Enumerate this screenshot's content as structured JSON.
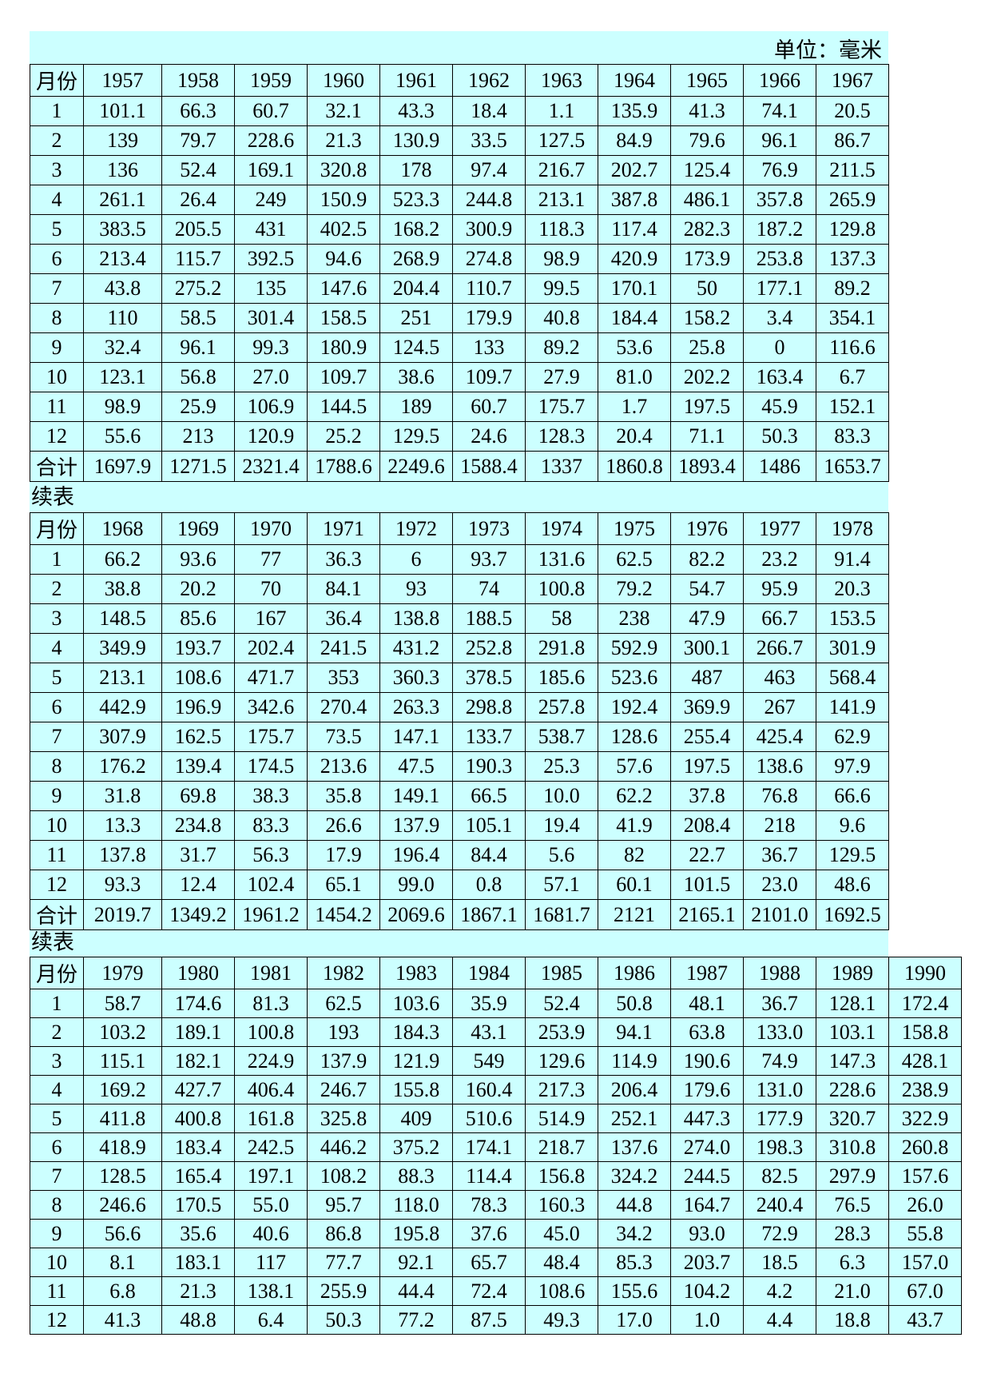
{
  "unit_label": "单位：毫米",
  "continuation_label": "续表",
  "month_header": "月份",
  "total_label": "合计",
  "colors": {
    "cell_background": "#CCFFFF",
    "border": "#000000"
  },
  "tables": [
    {
      "years": [
        "1957",
        "1958",
        "1959",
        "1960",
        "1961",
        "1962",
        "1963",
        "1964",
        "1965",
        "1966",
        "1967"
      ],
      "rows": [
        {
          "month": "1",
          "values": [
            "101.1",
            "66.3",
            "60.7",
            "32.1",
            "43.3",
            "18.4",
            "1.1",
            "135.9",
            "41.3",
            "74.1",
            "20.5"
          ]
        },
        {
          "month": "2",
          "values": [
            "139",
            "79.7",
            "228.6",
            "21.3",
            "130.9",
            "33.5",
            "127.5",
            "84.9",
            "79.6",
            "96.1",
            "86.7"
          ]
        },
        {
          "month": "3",
          "values": [
            "136",
            "52.4",
            "169.1",
            "320.8",
            "178",
            "97.4",
            "216.7",
            "202.7",
            "125.4",
            "76.9",
            "211.5"
          ]
        },
        {
          "month": "4",
          "values": [
            "261.1",
            "26.4",
            "249",
            "150.9",
            "523.3",
            "244.8",
            "213.1",
            "387.8",
            "486.1",
            "357.8",
            "265.9"
          ]
        },
        {
          "month": "5",
          "values": [
            "383.5",
            "205.5",
            "431",
            "402.5",
            "168.2",
            "300.9",
            "118.3",
            "117.4",
            "282.3",
            "187.2",
            "129.8"
          ]
        },
        {
          "month": "6",
          "values": [
            "213.4",
            "115.7",
            "392.5",
            "94.6",
            "268.9",
            "274.8",
            "98.9",
            "420.9",
            "173.9",
            "253.8",
            "137.3"
          ]
        },
        {
          "month": "7",
          "values": [
            "43.8",
            "275.2",
            "135",
            "147.6",
            "204.4",
            "110.7",
            "99.5",
            "170.1",
            "50",
            "177.1",
            "89.2"
          ]
        },
        {
          "month": "8",
          "values": [
            "110",
            "58.5",
            "301.4",
            "158.5",
            "251",
            "179.9",
            "40.8",
            "184.4",
            "158.2",
            "3.4",
            "354.1"
          ]
        },
        {
          "month": "9",
          "values": [
            "32.4",
            "96.1",
            "99.3",
            "180.9",
            "124.5",
            "133",
            "89.2",
            "53.6",
            "25.8",
            "0",
            "116.6"
          ]
        },
        {
          "month": "10",
          "values": [
            "123.1",
            "56.8",
            "27.0",
            "109.7",
            "38.6",
            "109.7",
            "27.9",
            "81.0",
            "202.2",
            "163.4",
            "6.7"
          ]
        },
        {
          "month": "11",
          "values": [
            "98.9",
            "25.9",
            "106.9",
            "144.5",
            "189",
            "60.7",
            "175.7",
            "1.7",
            "197.5",
            "45.9",
            "152.1"
          ]
        },
        {
          "month": "12",
          "values": [
            "55.6",
            "213",
            "120.9",
            "25.2",
            "129.5",
            "24.6",
            "128.3",
            "20.4",
            "71.1",
            "50.3",
            "83.3"
          ]
        }
      ],
      "totals": [
        "1697.9",
        "1271.5",
        "2321.4",
        "1788.6",
        "2249.6",
        "1588.4",
        "1337",
        "1860.8",
        "1893.4",
        "1486",
        "1653.7"
      ]
    },
    {
      "years": [
        "1968",
        "1969",
        "1970",
        "1971",
        "1972",
        "1973",
        "1974",
        "1975",
        "1976",
        "1977",
        "1978"
      ],
      "rows": [
        {
          "month": "1",
          "values": [
            "66.2",
            "93.6",
            "77",
            "36.3",
            "6",
            "93.7",
            "131.6",
            "62.5",
            "82.2",
            "23.2",
            "91.4"
          ]
        },
        {
          "month": "2",
          "values": [
            "38.8",
            "20.2",
            "70",
            "84.1",
            "93",
            "74",
            "100.8",
            "79.2",
            "54.7",
            "95.9",
            "20.3"
          ]
        },
        {
          "month": "3",
          "values": [
            "148.5",
            "85.6",
            "167",
            "36.4",
            "138.8",
            "188.5",
            "58",
            "238",
            "47.9",
            "66.7",
            "153.5"
          ]
        },
        {
          "month": "4",
          "values": [
            "349.9",
            "193.7",
            "202.4",
            "241.5",
            "431.2",
            "252.8",
            "291.8",
            "592.9",
            "300.1",
            "266.7",
            "301.9"
          ]
        },
        {
          "month": "5",
          "values": [
            "213.1",
            "108.6",
            "471.7",
            "353",
            "360.3",
            "378.5",
            "185.6",
            "523.6",
            "487",
            "463",
            "568.4"
          ]
        },
        {
          "month": "6",
          "values": [
            "442.9",
            "196.9",
            "342.6",
            "270.4",
            "263.3",
            "298.8",
            "257.8",
            "192.4",
            "369.9",
            "267",
            "141.9"
          ]
        },
        {
          "month": "7",
          "values": [
            "307.9",
            "162.5",
            "175.7",
            "73.5",
            "147.1",
            "133.7",
            "538.7",
            "128.6",
            "255.4",
            "425.4",
            "62.9"
          ]
        },
        {
          "month": "8",
          "values": [
            "176.2",
            "139.4",
            "174.5",
            "213.6",
            "47.5",
            "190.3",
            "25.3",
            "57.6",
            "197.5",
            "138.6",
            "97.9"
          ]
        },
        {
          "month": "9",
          "values": [
            "31.8",
            "69.8",
            "38.3",
            "35.8",
            "149.1",
            "66.5",
            "10.0",
            "62.2",
            "37.8",
            "76.8",
            "66.6"
          ]
        },
        {
          "month": "10",
          "values": [
            "13.3",
            "234.8",
            "83.3",
            "26.6",
            "137.9",
            "105.1",
            "19.4",
            "41.9",
            "208.4",
            "218",
            "9.6"
          ]
        },
        {
          "month": "11",
          "values": [
            "137.8",
            "31.7",
            "56.3",
            "17.9",
            "196.4",
            "84.4",
            "5.6",
            "82",
            "22.7",
            "36.7",
            "129.5"
          ]
        },
        {
          "month": "12",
          "values": [
            "93.3",
            "12.4",
            "102.4",
            "65.1",
            "99.0",
            "0.8",
            "57.1",
            "60.1",
            "101.5",
            "23.0",
            "48.6"
          ]
        }
      ],
      "totals": [
        "2019.7",
        "1349.2",
        "1961.2",
        "1454.2",
        "2069.6",
        "1867.1",
        "1681.7",
        "2121",
        "2165.1",
        "2101.0",
        "1692.5"
      ]
    },
    {
      "years": [
        "1979",
        "1980",
        "1981",
        "1982",
        "1983",
        "1984",
        "1985",
        "1986",
        "1987",
        "1988",
        "1989",
        "1990"
      ],
      "rows": [
        {
          "month": "1",
          "values": [
            "58.7",
            "174.6",
            "81.3",
            "62.5",
            "103.6",
            "35.9",
            "52.4",
            "50.8",
            "48.1",
            "36.7",
            "128.1",
            "172.4"
          ]
        },
        {
          "month": "2",
          "values": [
            "103.2",
            "189.1",
            "100.8",
            "193",
            "184.3",
            "43.1",
            "253.9",
            "94.1",
            "63.8",
            "133.0",
            "103.1",
            "158.8"
          ]
        },
        {
          "month": "3",
          "values": [
            "115.1",
            "182.1",
            "224.9",
            "137.9",
            "121.9",
            "549",
            "129.6",
            "114.9",
            "190.6",
            "74.9",
            "147.3",
            "428.1"
          ]
        },
        {
          "month": "4",
          "values": [
            "169.2",
            "427.7",
            "406.4",
            "246.7",
            "155.8",
            "160.4",
            "217.3",
            "206.4",
            "179.6",
            "131.0",
            "228.6",
            "238.9"
          ]
        },
        {
          "month": "5",
          "values": [
            "411.8",
            "400.8",
            "161.8",
            "325.8",
            "409",
            "510.6",
            "514.9",
            "252.1",
            "447.3",
            "177.9",
            "320.7",
            "322.9"
          ]
        },
        {
          "month": "6",
          "values": [
            "418.9",
            "183.4",
            "242.5",
            "446.2",
            "375.2",
            "174.1",
            "218.7",
            "137.6",
            "274.0",
            "198.3",
            "310.8",
            "260.8"
          ]
        },
        {
          "month": "7",
          "values": [
            "128.5",
            "165.4",
            "197.1",
            "108.2",
            "88.3",
            "114.4",
            "156.8",
            "324.2",
            "244.5",
            "82.5",
            "297.9",
            "157.6"
          ]
        },
        {
          "month": "8",
          "values": [
            "246.6",
            "170.5",
            "55.0",
            "95.7",
            "118.0",
            "78.3",
            "160.3",
            "44.8",
            "164.7",
            "240.4",
            "76.5",
            "26.0"
          ]
        },
        {
          "month": "9",
          "values": [
            "56.6",
            "35.6",
            "40.6",
            "86.8",
            "195.8",
            "37.6",
            "45.0",
            "34.2",
            "93.0",
            "72.9",
            "28.3",
            "55.8"
          ]
        },
        {
          "month": "10",
          "values": [
            "8.1",
            "183.1",
            "117",
            "77.7",
            "92.1",
            "65.7",
            "48.4",
            "85.3",
            "203.7",
            "18.5",
            "6.3",
            "157.0"
          ]
        },
        {
          "month": "11",
          "values": [
            "6.8",
            "21.3",
            "138.1",
            "255.9",
            "44.4",
            "72.4",
            "108.6",
            "155.6",
            "104.2",
            "4.2",
            "21.0",
            "67.0"
          ]
        },
        {
          "month": "12",
          "values": [
            "41.3",
            "48.8",
            "6.4",
            "50.3",
            "77.2",
            "87.5",
            "49.3",
            "17.0",
            "1.0",
            "4.4",
            "18.8",
            "43.7"
          ]
        }
      ]
    }
  ]
}
